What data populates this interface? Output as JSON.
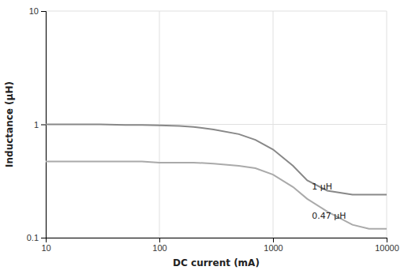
{
  "chart_data": {
    "type": "line",
    "xlabel": "DC current (mA)",
    "ylabel": "Inductance (μH)",
    "log": true,
    "grid": true,
    "xlim": [
      10,
      10000
    ],
    "ylim": [
      0.1,
      10
    ],
    "xticks": [
      10,
      100,
      1000,
      10000
    ],
    "yticks": [
      0.1,
      1,
      10
    ],
    "x": [
      10,
      20,
      30,
      50,
      70,
      100,
      150,
      200,
      300,
      500,
      700,
      1000,
      1500,
      2000,
      3000,
      5000,
      7000,
      10000
    ],
    "series": [
      {
        "color": "#888888",
        "values": [
          1.0,
          1.0,
          1.0,
          0.99,
          0.99,
          0.98,
          0.97,
          0.95,
          0.9,
          0.82,
          0.73,
          0.6,
          0.43,
          0.32,
          0.26,
          0.24,
          0.24,
          0.24
        ]
      },
      {
        "color": "#aaaaaa",
        "values": [
          0.47,
          0.47,
          0.47,
          0.47,
          0.47,
          0.46,
          0.46,
          0.46,
          0.45,
          0.43,
          0.41,
          0.36,
          0.28,
          0.22,
          0.17,
          0.13,
          0.12,
          0.12
        ]
      }
    ],
    "annotations": [
      {
        "text": "1 μH",
        "x": 2200,
        "y": 0.265
      },
      {
        "text": "0.47 μH",
        "x": 2200,
        "y": 0.148
      }
    ]
  }
}
